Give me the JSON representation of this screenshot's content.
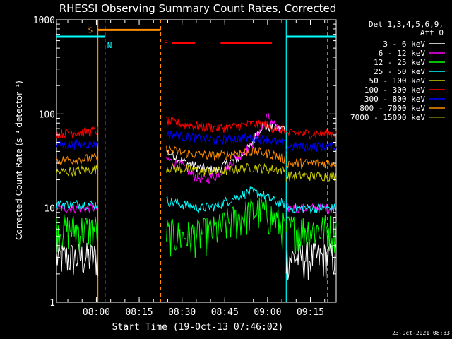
{
  "chart_data": {
    "type": "line",
    "title": "RHESSI Observing Summary Count Rates, Corrected",
    "xlabel": "Start Time (19-Oct-13 07:46:02)",
    "ylabel": "Corrected Count Rate (s⁻¹ detector⁻¹)",
    "yscale": "log",
    "ylim": [
      1,
      1000
    ],
    "xlim_minutes": [
      0,
      98
    ],
    "x_ticks": [
      {
        "label": "08:00",
        "t": 13.97
      },
      {
        "label": "08:15",
        "t": 28.97
      },
      {
        "label": "08:30",
        "t": 43.97
      },
      {
        "label": "08:45",
        "t": 58.97
      },
      {
        "label": "09:00",
        "t": 73.97
      },
      {
        "label": "09:15",
        "t": 88.97
      }
    ],
    "y_ticks": [
      {
        "label": "1",
        "v": 1
      },
      {
        "label": "10",
        "v": 10
      },
      {
        "label": "100",
        "v": 100
      },
      {
        "label": "1000",
        "v": 1000
      }
    ],
    "legend_header": [
      "Det 1,3,4,5,6,9,",
      "Att 0"
    ],
    "legend_placement": "right",
    "series": [
      {
        "name": "3 - 6 keV",
        "color": "#ffffff",
        "segments": [
          {
            "t": [
              0,
              14.5
            ],
            "v": [
              3.0,
              3.0
            ]
          },
          {
            "t": [
              38.5,
              44,
              48,
              52,
              56,
              60,
              64,
              68,
              72,
              76,
              80
            ],
            "v": [
              40,
              32,
              28,
              26,
              25,
              30,
              34,
              45,
              75,
              70,
              70
            ]
          },
          {
            "t": [
              80.5,
              98
            ],
            "v": [
              3.0,
              3.0
            ]
          }
        ]
      },
      {
        "name": "6 - 12 keV",
        "color": "#ff00ff",
        "segments": [
          {
            "t": [
              0,
              14.5
            ],
            "v": [
              10,
              10
            ]
          },
          {
            "t": [
              38.5,
              44,
              48,
              52,
              56,
              60,
              64,
              68,
              72,
              74,
              76,
              79
            ],
            "v": [
              33,
              28,
              22,
              20,
              22,
              28,
              36,
              45,
              70,
              95,
              80,
              60
            ]
          },
          {
            "t": [
              80.5,
              98
            ],
            "v": [
              10,
              10
            ]
          }
        ]
      },
      {
        "name": "12 - 25 keV",
        "color": "#00ff00",
        "segments": [
          {
            "t": [
              0,
              14.5
            ],
            "v": [
              6.0,
              6.0
            ]
          },
          {
            "t": [
              38.5,
              44,
              50,
              56,
              60,
              64,
              68,
              72,
              76,
              80
            ],
            "v": [
              5.5,
              5.0,
              5.3,
              5.8,
              7.0,
              8.0,
              9.0,
              9.5,
              8.0,
              6.0
            ]
          },
          {
            "t": [
              80.5,
              98
            ],
            "v": [
              6.0,
              6.0
            ]
          }
        ]
      },
      {
        "name": "25 - 50 keV",
        "color": "#00ffff",
        "segments": [
          {
            "t": [
              0,
              14.5
            ],
            "v": [
              11,
              11
            ]
          },
          {
            "t": [
              38.5,
              44,
              50,
              56,
              60,
              64,
              68,
              72,
              76,
              80
            ],
            "v": [
              12,
              11,
              10,
              10.5,
              12,
              13.5,
              15,
              14,
              12,
              11
            ]
          },
          {
            "t": [
              80.5,
              98
            ],
            "v": [
              10,
              10
            ]
          }
        ]
      },
      {
        "name": "50 - 100 keV",
        "color": "#cccc00",
        "segments": [
          {
            "t": [
              0,
              14.5
            ],
            "v": [
              24,
              26
            ]
          },
          {
            "t": [
              38.5,
              44,
              50,
              56,
              60,
              64,
              68,
              72,
              76,
              80
            ],
            "v": [
              27,
              26,
              25,
              24.5,
              25,
              26,
              27,
              26.5,
              26,
              25
            ]
          },
          {
            "t": [
              80.5,
              98
            ],
            "v": [
              22,
              22
            ]
          }
        ]
      },
      {
        "name": "100 - 300 keV",
        "color": "#ff0000",
        "segments": [
          {
            "t": [
              0,
              14.5
            ],
            "v": [
              62,
              66
            ]
          },
          {
            "t": [
              38.5,
              44,
              50,
              56,
              60,
              64,
              68,
              72,
              76,
              80
            ],
            "v": [
              85,
              78,
              74,
              71,
              72,
              75,
              78,
              77,
              72,
              68
            ]
          },
          {
            "t": [
              80.5,
              98
            ],
            "v": [
              62,
              62
            ]
          }
        ]
      },
      {
        "name": "300 - 800 keV",
        "color": "#0000ff",
        "segments": [
          {
            "t": [
              0,
              14.5
            ],
            "v": [
              47,
              48
            ]
          },
          {
            "t": [
              38.5,
              44,
              50,
              56,
              60,
              64,
              68,
              72,
              76,
              80
            ],
            "v": [
              62,
              58,
              55,
              53,
              54,
              55,
              56,
              55,
              52,
              48
            ]
          },
          {
            "t": [
              80.5,
              98
            ],
            "v": [
              45,
              45
            ]
          }
        ]
      },
      {
        "name": "800 - 7000 keV",
        "color": "#ff8c00",
        "segments": [
          {
            "t": [
              0,
              14.5
            ],
            "v": [
              32,
              34
            ]
          },
          {
            "t": [
              38.5,
              44,
              50,
              56,
              60,
              64,
              68,
              72,
              76,
              80
            ],
            "v": [
              42,
              39,
              37,
              36,
              37,
              39,
              40,
              39,
              37,
              33
            ]
          },
          {
            "t": [
              80.5,
              98
            ],
            "v": [
              30,
              30
            ]
          }
        ]
      },
      {
        "name": "7000 - 15000 keV",
        "color": "#808000",
        "segments": []
      }
    ],
    "flags": [
      {
        "label": "S",
        "color": "#ff8c00",
        "t_start": 14.5,
        "t_end": 36.5,
        "v": 780
      },
      {
        "label": "N",
        "color": "#00ffff",
        "t_start": 0,
        "t_end": 17.0,
        "v": 660
      },
      {
        "label": "N",
        "color": "#00ffff",
        "t_start": 80.5,
        "t_end": 98,
        "v": 660
      },
      {
        "label": "F",
        "color": "#ff0000",
        "segments": [
          [
            40.5,
            48.5
          ],
          [
            57.5,
            75.5
          ]
        ],
        "v": 570
      }
    ],
    "vlines": [
      {
        "t": 14.5,
        "color": "#ff8c00",
        "style": "solid"
      },
      {
        "t": 17.0,
        "color": "#00ffff",
        "style": "dashed"
      },
      {
        "t": 36.5,
        "color": "#ff8c00",
        "style": "dashed"
      },
      {
        "t": 80.5,
        "color": "#00ffff",
        "style": "solid"
      },
      {
        "t": 95.0,
        "color": "#00ffff",
        "style": "dashed"
      }
    ],
    "date_stamp": "23-Oct-2021 08:33"
  },
  "colors": {
    "background": "#000000",
    "foreground": "#ffffff"
  }
}
